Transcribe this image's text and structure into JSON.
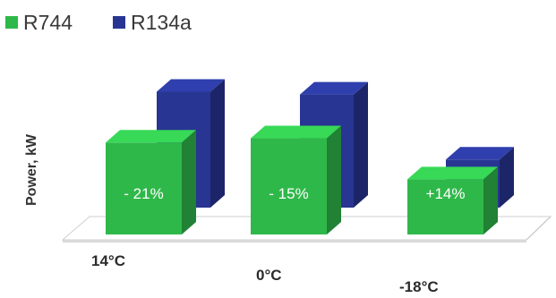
{
  "chart_data": {
    "type": "bar",
    "title": "",
    "xlabel": "",
    "ylabel": "Power, kW",
    "categories": [
      "14°C",
      "0°C",
      "-18°C"
    ],
    "series": [
      {
        "name": "R744",
        "color": "#2fb84a",
        "values": [
          6.5,
          6.8,
          3.9
        ]
      },
      {
        "name": "R134a",
        "color": "#283593",
        "values": [
          8.2,
          8.0,
          3.4
        ]
      }
    ],
    "annotations": [
      "- 21%",
      "- 15%",
      "+14%"
    ],
    "legend_position": "top-left",
    "grid": false,
    "ylim": [
      0,
      10
    ]
  }
}
